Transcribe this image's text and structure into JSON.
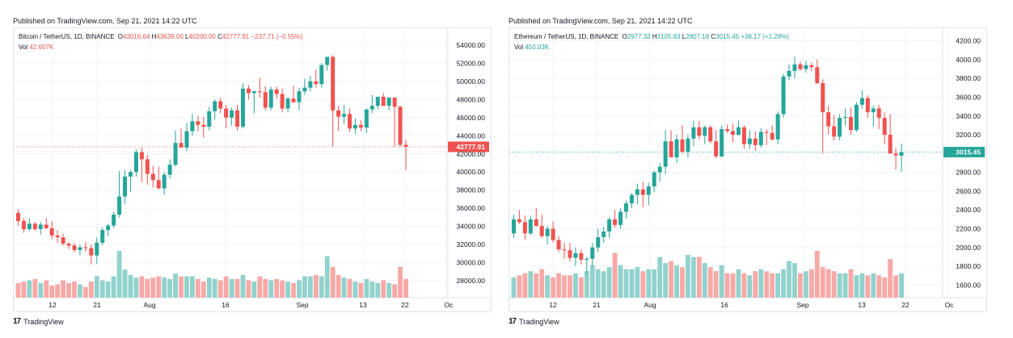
{
  "colors": {
    "up": "#26a69a",
    "down": "#ef5350",
    "vol_up": "#92d2cc",
    "vol_down": "#f7a9a7",
    "grid": "#f0f3fa",
    "border": "#e0e3eb"
  },
  "branding": {
    "name": "TradingView",
    "icon": "tradingview-logo-icon"
  },
  "charts": [
    {
      "published": "Published on TradingView.com, Sep 21, 2021 14:22 UTC",
      "symbol": "Bitcoin / TetherUS, 1D, BINANCE",
      "O": "43016.64",
      "H": "43639.00",
      "L": "40200.00",
      "C": "42777.91",
      "change": "−237.71 (−0.55%)",
      "vol_label": "Vol",
      "vol_value": "42.607K",
      "last_price": "42777.91"
    },
    {
      "published": "Published on TradingView.com, Sep 21, 2021 14:22 UTC",
      "symbol": "Ethereum / TetherUS, 1D, BINANCE",
      "O": "2977.32",
      "H": "3105.83",
      "L": "2807.18",
      "C": "3015.45",
      "change": "+38.17 (+1.28%)",
      "vol_label": "Vol",
      "vol_value": "450.03K",
      "last_price": "3015.45"
    }
  ],
  "chart_data": [
    {
      "type": "candlestick",
      "title": "Bitcoin / TetherUS, 1D, BINANCE",
      "x_ticks": [
        "12",
        "21",
        "Aug",
        "16",
        "Sep",
        "13",
        "22",
        "Oc"
      ],
      "y_ticks": [
        "28000.00",
        "30000.00",
        "32000.00",
        "34000.00",
        "36000.00",
        "38000.00",
        "40000.00",
        "42000.00",
        "44000.00",
        "46000.00",
        "48000.00",
        "50000.00",
        "52000.00",
        "54000.00"
      ],
      "ylim": [
        26500,
        55500
      ],
      "last_price": 42777.91,
      "candles": [
        [
          35500,
          35900,
          34100,
          34600
        ],
        [
          34600,
          34900,
          33300,
          33700
        ],
        [
          33700,
          34900,
          33500,
          34300
        ],
        [
          34300,
          34500,
          33500,
          33700
        ],
        [
          33700,
          34500,
          33100,
          34200
        ],
        [
          34200,
          34900,
          33700,
          33800
        ],
        [
          33800,
          34600,
          32600,
          33000
        ],
        [
          33000,
          33600,
          32200,
          32800
        ],
        [
          32800,
          33200,
          31900,
          32100
        ],
        [
          32100,
          32300,
          31500,
          31900
        ],
        [
          31900,
          32200,
          31100,
          31400
        ],
        [
          31400,
          32000,
          30800,
          31700
        ],
        [
          31700,
          32300,
          31200,
          31600
        ],
        [
          31600,
          32000,
          29800,
          30800
        ],
        [
          30800,
          32800,
          29900,
          32200
        ],
        [
          32200,
          33900,
          31900,
          33600
        ],
        [
          33600,
          34300,
          32900,
          34100
        ],
        [
          34100,
          35600,
          33800,
          35300
        ],
        [
          35300,
          40100,
          35000,
          37300
        ],
        [
          37300,
          40200,
          36500,
          39500
        ],
        [
          39500,
          40200,
          37800,
          40000
        ],
        [
          40000,
          42500,
          39500,
          42200
        ],
        [
          42200,
          42700,
          38900,
          41400
        ],
        [
          41400,
          41900,
          38600,
          39800
        ],
        [
          39800,
          40700,
          38300,
          39100
        ],
        [
          39100,
          40600,
          38100,
          38200
        ],
        [
          38200,
          40000,
          37500,
          39700
        ],
        [
          39700,
          41400,
          39300,
          40800
        ],
        [
          40800,
          44600,
          40600,
          43200
        ],
        [
          43200,
          44800,
          42800,
          42700
        ],
        [
          42700,
          45400,
          42300,
          44500
        ],
        [
          44500,
          46400,
          44000,
          45600
        ],
        [
          45600,
          46200,
          44500,
          45200
        ],
        [
          45200,
          46100,
          43800,
          45000
        ],
        [
          45000,
          47200,
          44600,
          46700
        ],
        [
          46700,
          48000,
          45800,
          47800
        ],
        [
          47800,
          48200,
          46500,
          47000
        ],
        [
          47000,
          47400,
          44800,
          46000
        ],
        [
          46000,
          47100,
          45100,
          46800
        ],
        [
          46800,
          47400,
          44600,
          45000
        ],
        [
          45000,
          49800,
          44800,
          49200
        ],
        [
          49200,
          49600,
          48000,
          48700
        ],
        [
          48700,
          49000,
          46500,
          48900
        ],
        [
          48900,
          50400,
          48200,
          48800
        ],
        [
          48800,
          49500,
          46800,
          47100
        ],
        [
          47100,
          49400,
          46800,
          49100
        ],
        [
          49100,
          49400,
          48100,
          48600
        ],
        [
          48600,
          49200,
          46600,
          47000
        ],
        [
          47000,
          48300,
          46600,
          48100
        ],
        [
          48100,
          49500,
          47600,
          47700
        ],
        [
          47700,
          49300,
          46800,
          48900
        ],
        [
          48900,
          50300,
          48500,
          49300
        ],
        [
          49300,
          50600,
          48900,
          50000
        ],
        [
          50000,
          51300,
          49300,
          49700
        ],
        [
          49700,
          52000,
          49300,
          51800
        ],
        [
          51800,
          52500,
          51200,
          52700
        ],
        [
          52700,
          52900,
          42800,
          46800
        ],
        [
          46800,
          47300,
          44500,
          46100
        ],
        [
          46100,
          47400,
          45300,
          46400
        ],
        [
          46400,
          47000,
          44400,
          44800
        ],
        [
          44800,
          45900,
          44200,
          45200
        ],
        [
          45200,
          45700,
          44500,
          44900
        ],
        [
          44900,
          47000,
          44300,
          46900
        ],
        [
          46900,
          48500,
          46500,
          47300
        ],
        [
          47300,
          48100,
          46900,
          48300
        ],
        [
          48300,
          48700,
          47300,
          47300
        ],
        [
          47300,
          48300,
          46800,
          48200
        ],
        [
          48200,
          48300,
          42800,
          47200
        ],
        [
          47200,
          47300,
          42800,
          43000
        ],
        [
          43000,
          43600,
          40200,
          42777.91
        ]
      ],
      "volume": [
        11,
        12,
        13,
        14,
        11,
        13,
        9,
        10,
        13,
        11,
        12,
        10,
        8,
        12,
        16,
        13,
        12,
        16,
        35,
        21,
        17,
        15,
        16,
        14,
        15,
        16,
        15,
        14,
        18,
        16,
        16,
        16,
        14,
        12,
        15,
        14,
        13,
        16,
        14,
        14,
        17,
        13,
        12,
        16,
        14,
        13,
        14,
        13,
        12,
        11,
        13,
        16,
        16,
        17,
        16,
        31,
        23,
        17,
        15,
        14,
        12,
        11,
        14,
        12,
        11,
        13,
        11,
        10,
        23,
        14
      ]
    },
    {
      "type": "candlestick",
      "title": "Ethereum / TetherUS, 1D, BINANCE",
      "x_ticks": [
        "12",
        "21",
        "Aug",
        "16",
        "Sep",
        "13",
        "22",
        "Oc"
      ],
      "y_ticks": [
        "1600.00",
        "1800.00",
        "2000.00",
        "2200.00",
        "2400.00",
        "2600.00",
        "2800.00",
        "3000.00",
        "3200.00",
        "3400.00",
        "3600.00",
        "3800.00",
        "4000.00",
        "4200.00"
      ],
      "ylim": [
        1500,
        4300
      ],
      "last_price": 3015.45,
      "candles": [
        [
          2150,
          2350,
          2100,
          2300
        ],
        [
          2300,
          2400,
          2250,
          2270
        ],
        [
          2270,
          2340,
          2080,
          2150
        ],
        [
          2150,
          2340,
          2130,
          2300
        ],
        [
          2300,
          2420,
          2220,
          2230
        ],
        [
          2230,
          2350,
          2100,
          2120
        ],
        [
          2120,
          2230,
          2030,
          2200
        ],
        [
          2200,
          2280,
          2050,
          2080
        ],
        [
          2080,
          2120,
          1950,
          1980
        ],
        [
          1980,
          2050,
          1880,
          1970
        ],
        [
          1970,
          2050,
          1850,
          1890
        ],
        [
          1890,
          2000,
          1800,
          1940
        ],
        [
          1940,
          1980,
          1820,
          1870
        ],
        [
          1870,
          1900,
          1720,
          1880
        ],
        [
          1880,
          2050,
          1800,
          2000
        ],
        [
          2000,
          2200,
          1950,
          2110
        ],
        [
          2110,
          2220,
          2050,
          2170
        ],
        [
          2170,
          2320,
          2100,
          2300
        ],
        [
          2300,
          2400,
          2210,
          2240
        ],
        [
          2240,
          2420,
          2200,
          2380
        ],
        [
          2380,
          2500,
          2310,
          2470
        ],
        [
          2470,
          2580,
          2420,
          2560
        ],
        [
          2560,
          2680,
          2460,
          2620
        ],
        [
          2620,
          2700,
          2430,
          2560
        ],
        [
          2560,
          2690,
          2450,
          2650
        ],
        [
          2650,
          2820,
          2590,
          2800
        ],
        [
          2800,
          2900,
          2700,
          2860
        ],
        [
          2860,
          3250,
          2780,
          3130
        ],
        [
          3130,
          3250,
          2980,
          2960
        ],
        [
          2960,
          3200,
          2900,
          3150
        ],
        [
          3150,
          3300,
          3000,
          3020
        ],
        [
          3020,
          3200,
          2960,
          3160
        ],
        [
          3160,
          3350,
          3080,
          3280
        ],
        [
          3280,
          3350,
          3150,
          3190
        ],
        [
          3190,
          3300,
          3100,
          3280
        ],
        [
          3280,
          3300,
          3110,
          3130
        ],
        [
          3130,
          3250,
          2950,
          2970
        ],
        [
          2970,
          3300,
          2960,
          3260
        ],
        [
          3260,
          3310,
          3220,
          3240
        ],
        [
          3240,
          3320,
          3120,
          3200
        ],
        [
          3200,
          3350,
          3190,
          3280
        ],
        [
          3280,
          3300,
          3050,
          3100
        ],
        [
          3100,
          3250,
          3050,
          3160
        ],
        [
          3160,
          3240,
          3030,
          3090
        ],
        [
          3090,
          3270,
          3060,
          3230
        ],
        [
          3230,
          3260,
          3090,
          3220
        ],
        [
          3220,
          3300,
          3140,
          3150
        ],
        [
          3150,
          3450,
          3100,
          3420
        ],
        [
          3420,
          3850,
          3380,
          3820
        ],
        [
          3820,
          3950,
          3780,
          3880
        ],
        [
          3880,
          4030,
          3800,
          3950
        ],
        [
          3950,
          3980,
          3880,
          3900
        ],
        [
          3900,
          3990,
          3860,
          3940
        ],
        [
          3940,
          3970,
          3880,
          3920
        ],
        [
          3920,
          4000,
          3740,
          3750
        ],
        [
          3750,
          3790,
          3000,
          3440
        ],
        [
          3440,
          3510,
          3200,
          3290
        ],
        [
          3290,
          3410,
          3140,
          3180
        ],
        [
          3180,
          3420,
          3140,
          3380
        ],
        [
          3380,
          3480,
          3300,
          3390
        ],
        [
          3390,
          3490,
          3200,
          3250
        ],
        [
          3250,
          3550,
          3230,
          3520
        ],
        [
          3520,
          3670,
          3480,
          3590
        ],
        [
          3590,
          3620,
          3380,
          3440
        ],
        [
          3440,
          3510,
          3290,
          3480
        ],
        [
          3480,
          3520,
          3260,
          3380
        ],
        [
          3380,
          3440,
          3100,
          3200
        ],
        [
          3200,
          3420,
          3000,
          3000
        ],
        [
          3000,
          3060,
          2830,
          2980
        ],
        [
          2977.32,
          3105.83,
          2807.18,
          3015.45
        ]
      ],
      "volume": [
        10,
        11,
        12,
        13,
        12,
        14,
        11,
        10,
        12,
        11,
        11,
        12,
        10,
        13,
        16,
        14,
        13,
        15,
        22,
        16,
        14,
        14,
        15,
        13,
        14,
        14,
        20,
        17,
        18,
        16,
        15,
        21,
        20,
        20,
        17,
        15,
        13,
        16,
        12,
        12,
        14,
        12,
        11,
        13,
        14,
        13,
        12,
        12,
        14,
        18,
        17,
        12,
        13,
        14,
        23,
        15,
        14,
        13,
        12,
        12,
        14,
        11,
        12,
        11,
        12,
        11,
        10,
        19,
        11,
        12
      ]
    }
  ]
}
